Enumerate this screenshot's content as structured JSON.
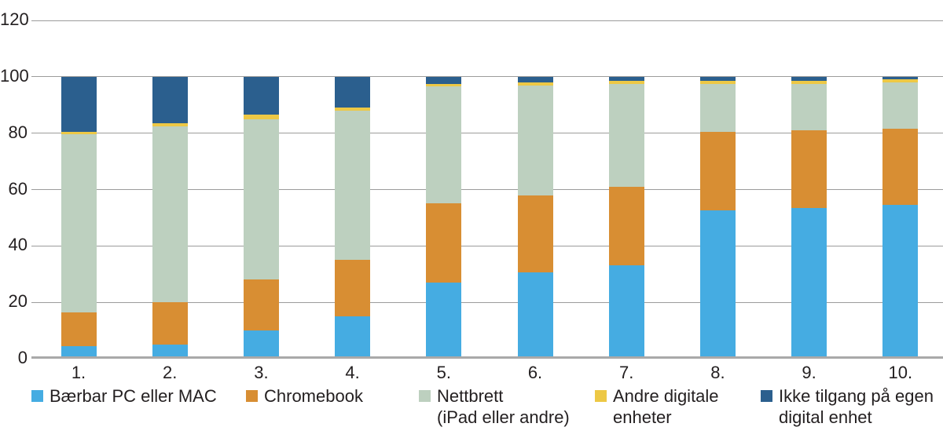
{
  "chart_data": {
    "type": "bar",
    "stacked": true,
    "orientation": "vertical",
    "categories": [
      "1.",
      "2.",
      "3.",
      "4.",
      "5.",
      "6.",
      "7.",
      "8.",
      "9.",
      "10."
    ],
    "series": [
      {
        "name": "Bærbar PC eller MAC",
        "color": "#45ACE2",
        "values": [
          4.5,
          5,
          10,
          15,
          27,
          30.5,
          33,
          52.5,
          53.5,
          54.5
        ]
      },
      {
        "name": "Chromebook",
        "color": "#D88E33",
        "values": [
          12,
          15,
          18,
          20,
          28,
          27.5,
          28,
          28,
          27.5,
          27
        ]
      },
      {
        "name": "Nettbrett (iPad eller andre)",
        "color": "#BDD0BF",
        "values": [
          63,
          62.5,
          57,
          53,
          41.5,
          39,
          36.5,
          17,
          16.5,
          16.5
        ]
      },
      {
        "name": "Andre digitale enheter",
        "color": "#EDC845",
        "values": [
          1,
          1,
          1.5,
          1,
          1,
          1,
          1,
          1,
          1,
          1
        ]
      },
      {
        "name": "Ikke tilgang på egen digital enhet",
        "color": "#2B5F8E",
        "values": [
          19.5,
          16.5,
          13.5,
          11,
          2.5,
          2,
          1.5,
          1.5,
          1.5,
          1
        ]
      }
    ],
    "ylim": [
      0,
      120
    ],
    "yticks": [
      0,
      20,
      40,
      60,
      80,
      100,
      120
    ],
    "grid": "horizontal-only",
    "legend_position": "bottom",
    "legend": [
      {
        "label_lines": [
          "Bærbar PC eller MAC"
        ],
        "color": "#45ACE2"
      },
      {
        "label_lines": [
          "Chromebook"
        ],
        "color": "#D88E33"
      },
      {
        "label_lines": [
          "Nettbrett",
          "(iPad eller andre)"
        ],
        "color": "#BDD0BF"
      },
      {
        "label_lines": [
          "Andre digitale",
          "enheter"
        ],
        "color": "#EDC845"
      },
      {
        "label_lines": [
          "Ikke tilgang på egen",
          "digital enhet"
        ],
        "color": "#2B5F8E"
      }
    ]
  },
  "colors": {
    "background": "#FFFFFF",
    "text": "#231F20",
    "gridline": "#9C9C9B",
    "axisline": "#A9A9A9"
  }
}
